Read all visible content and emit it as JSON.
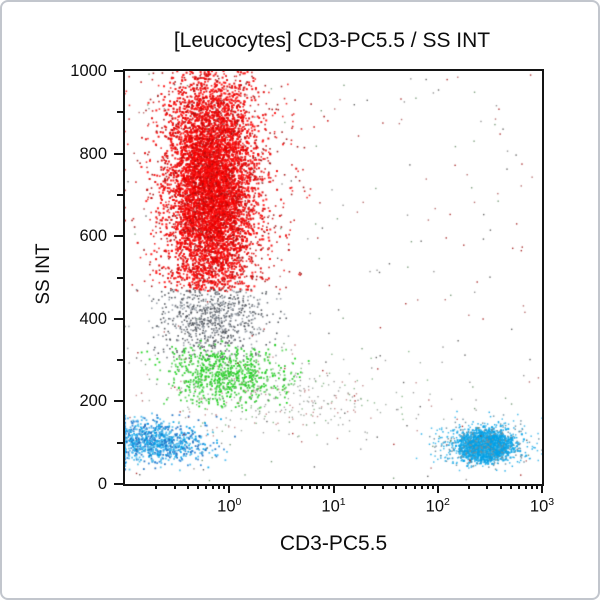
{
  "figure": {
    "background": "#ffffff",
    "card_border_color": "#c2c6cd",
    "plot_border_color": "#141414"
  },
  "chart_data": {
    "type": "scatter",
    "subtype": "flow-cytometry-dot-plot",
    "title": "[Leucocytes] CD3-PC5.5 / SS INT",
    "xlabel": "CD3-PC5.5",
    "ylabel": "SS INT",
    "x_scale": "log",
    "y_scale": "linear",
    "xlim": [
      0.1,
      1000
    ],
    "ylim": [
      0,
      1000
    ],
    "grid": false,
    "legend": false,
    "x_major_ticks": {
      "base": "10",
      "exponents": [
        "0",
        "1",
        "2",
        "3"
      ],
      "values": [
        1,
        10,
        100,
        1000
      ]
    },
    "y_major_ticks": [
      "0",
      "200",
      "400",
      "600",
      "800",
      "1000"
    ],
    "y_major_tick_values": [
      0,
      200,
      400,
      600,
      800,
      1000
    ],
    "y_minor_tick_values": [
      100,
      300,
      500,
      700,
      900
    ],
    "populations": [
      {
        "name": "granulocytes-core",
        "color": "#f30000",
        "colors": [
          "#f30000",
          "#ff1111",
          "#e00000"
        ],
        "n": 5200,
        "x_log_mean": -0.17,
        "x_log_sd": 0.2,
        "y_mean": 715,
        "y_sd": 135,
        "y_range": [
          467,
          1000
        ],
        "dot": 2.0
      },
      {
        "name": "granulocytes-halo",
        "color": "#cc1515",
        "colors": [
          "#ef2020",
          "#cc1515",
          "#a01010"
        ],
        "n": 1500,
        "x_log_mean": -0.14,
        "x_log_sd": 0.33,
        "y_mean": 715,
        "y_sd": 190,
        "y_range": [
          462,
          1000
        ],
        "dot": 1.6
      },
      {
        "name": "debris-gray",
        "color": "#98a0a8",
        "colors": [
          "#98a0a8",
          "#70767d",
          "#4b5056"
        ],
        "n": 780,
        "x_log_mean": -0.16,
        "x_log_sd": 0.26,
        "y_mean": 402,
        "y_sd": 55,
        "y_range": [
          300,
          472
        ],
        "dot": 1.6
      },
      {
        "name": "monocytes-green",
        "color": "#15d115",
        "colors": [
          "#15d115",
          "#2ec42e",
          "#5ad45a"
        ],
        "n": 720,
        "x_log_mean": -0.03,
        "x_log_sd": 0.27,
        "y_mean": 262,
        "y_sd": 36,
        "y_range": [
          175,
          350
        ],
        "dot": 1.8
      },
      {
        "name": "mid-sparse-scatter",
        "color": "#9fa8a0",
        "colors": [
          "#9fa8a0",
          "#85b285",
          "#c38989",
          "#999999"
        ],
        "n": 320,
        "x_log_mean": 0.5,
        "x_log_sd": 0.62,
        "y_mean": 205,
        "y_sd": 62,
        "y_range": [
          110,
          330
        ],
        "dot": 1.4
      },
      {
        "name": "lymphocytes-cd3neg-blue",
        "color": "#00a2e8",
        "colors": [
          "#00a2e8",
          "#2e86d8",
          "#4ab9ef",
          "#1d6fc0",
          "#57c0e8"
        ],
        "n": 980,
        "x_log_mean": -0.73,
        "x_log_sd": 0.25,
        "y_mean": 100,
        "y_sd": 27,
        "y_range": [
          32,
          172
        ],
        "dot": 1.8
      },
      {
        "name": "lymphocytes-cd3pos-cyan-core",
        "color": "#00a2e8",
        "colors": [
          "#00a2e8",
          "#0b9fe2"
        ],
        "n": 1600,
        "x_log_mean": 2.46,
        "x_log_sd": 0.11,
        "y_mean": 92,
        "y_sd": 16,
        "y_range": [
          42,
          158
        ],
        "dot": 2.1
      },
      {
        "name": "lymphocytes-cd3pos-cyan-halo",
        "color": "#1aa9e8",
        "colors": [
          "#1aa9e8",
          "#3db7ea",
          "#6f8f9e"
        ],
        "n": 650,
        "x_log_mean": 2.43,
        "x_log_sd": 0.22,
        "y_mean": 96,
        "y_sd": 28,
        "y_range": [
          30,
          178
        ],
        "dot": 1.5
      },
      {
        "name": "background-sparse",
        "color": "#8a8a8a",
        "colors": [
          "#8a8a8a",
          "#555555",
          "#b06060",
          "#a01818",
          "#6f946f"
        ],
        "n": 270,
        "uniform": true,
        "x_log_range": [
          -0.98,
          2.98
        ],
        "y_range": [
          8,
          995
        ],
        "dot": 1.4
      }
    ]
  }
}
